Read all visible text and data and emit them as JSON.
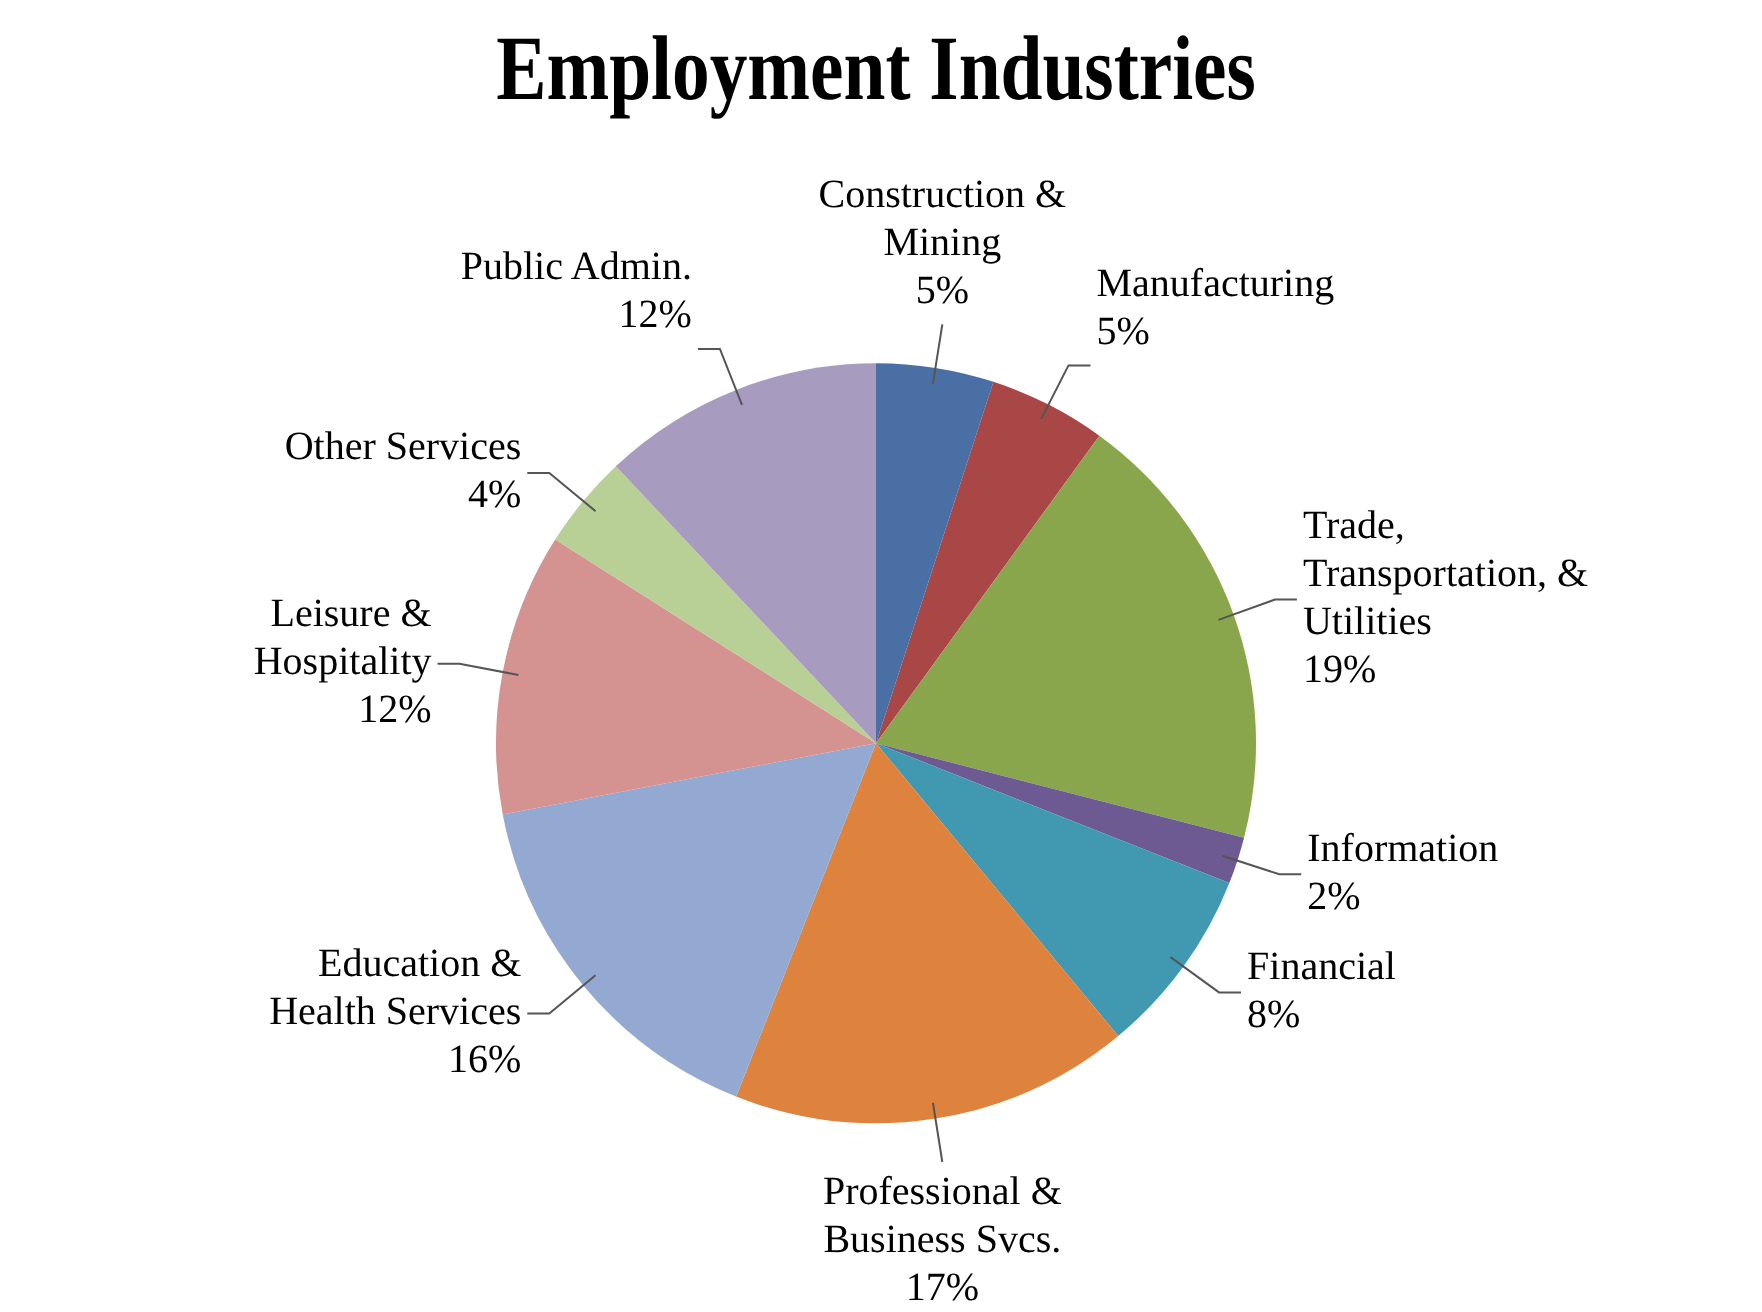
{
  "chart_data": {
    "type": "pie",
    "title": "Employment Industries",
    "categories": [
      "Construction & Mining",
      "Manufacturing",
      "Trade, Transportation, & Utilities",
      "Information",
      "Financial",
      "Professional & Business Svcs.",
      "Education & Health Services",
      "Leisure & Hospitality",
      "Other Services",
      "Public Admin."
    ],
    "values": [
      5,
      5,
      19,
      2,
      8,
      17,
      16,
      12,
      4,
      12
    ],
    "value_labels": [
      "5%",
      "5%",
      "19%",
      "2%",
      "8%",
      "17%",
      "16%",
      "12%",
      "4%",
      "12%"
    ],
    "colors": [
      "#4a6fa5",
      "#a84745",
      "#8aa64c",
      "#6e5a93",
      "#4099b0",
      "#de833d",
      "#93a9d2",
      "#d49290",
      "#b8cf96",
      "#a79bc0"
    ],
    "legend": false
  }
}
